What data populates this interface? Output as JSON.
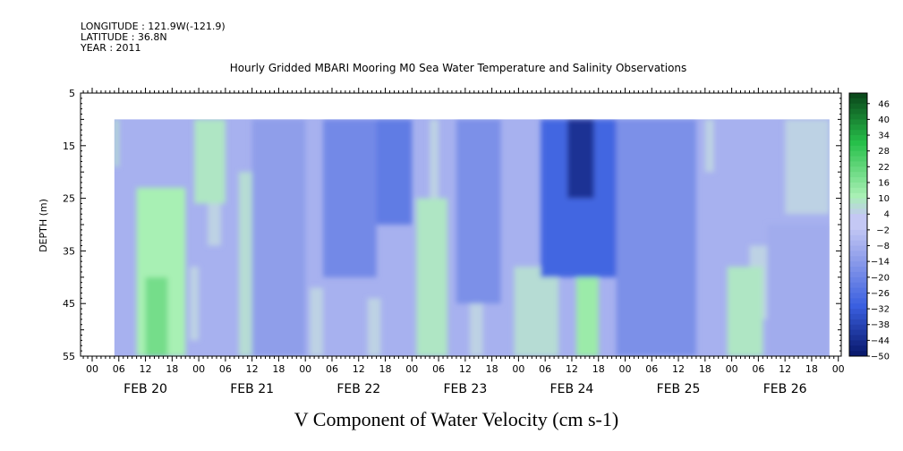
{
  "header": {
    "longitude": "LONGITUDE : 121.9W(-121.9)",
    "latitude": "LATITUDE : 36.8N",
    "year": "YEAR : 2011"
  },
  "chart_data": {
    "type": "heatmap",
    "title": "Hourly Gridded MBARI Mooring M0 Sea Water Temperature and Salinity Observations",
    "xlabel": "V Component of Water Velocity (cm s-1)",
    "ylabel": "DEPTH (m)",
    "ylim": [
      5,
      55
    ],
    "y_inverted": true,
    "y_ticks": [
      5,
      15,
      25,
      35,
      45,
      55
    ],
    "hour_tick_labels": [
      "00",
      "06",
      "12",
      "18"
    ],
    "day_labels": [
      "FEB 20",
      "FEB 21",
      "FEB 22",
      "FEB 23",
      "FEB 24",
      "FEB 25",
      "FEB 26"
    ],
    "data_depth_range": [
      10,
      55
    ],
    "data_time_range_hours": [
      5,
      166
    ],
    "colorbar": {
      "levels": [
        48,
        46,
        44,
        42,
        40,
        38,
        36,
        34,
        32,
        30,
        28,
        26,
        24,
        22,
        20,
        18,
        16,
        14,
        12,
        10,
        8,
        6,
        4,
        2,
        0,
        -2,
        -4,
        -6,
        -8,
        -10,
        -12,
        -14,
        -16,
        -18,
        -20,
        -22,
        -24,
        -26,
        -28,
        -30,
        -32,
        -34,
        -36,
        -38,
        -40,
        -42,
        -44,
        -46,
        -48,
        -50
      ],
      "labels": [
        46,
        40,
        34,
        28,
        22,
        16,
        10,
        4,
        -2,
        -8,
        -14,
        -20,
        -26,
        -32,
        -38,
        -44,
        -50
      ],
      "colors": {
        "strong_positive": "#0b4a1c",
        "positive": "#27c04a",
        "weak_positive": "#a8f0b4",
        "zero": "#c4c8f4",
        "weak_negative": "#8f9eea",
        "negative": "#3a5fe0",
        "strong_negative": "#0a1a6e"
      }
    },
    "features": [
      {
        "start_hour": 5,
        "end_hour": 6,
        "depth_top": 10,
        "depth_bottom": 19,
        "value": 6
      },
      {
        "start_hour": 10,
        "end_hour": 21,
        "depth_top": 23,
        "depth_bottom": 55,
        "value": 10
      },
      {
        "start_hour": 12,
        "end_hour": 17,
        "depth_top": 40,
        "depth_bottom": 55,
        "value": 18
      },
      {
        "start_hour": 18,
        "end_hour": 20,
        "depth_top": 32,
        "depth_bottom": 55,
        "value": 6
      },
      {
        "start_hour": 22,
        "end_hour": 24,
        "depth_top": 38,
        "depth_bottom": 52,
        "value": 4
      },
      {
        "start_hour": 23,
        "end_hour": 30,
        "depth_top": 10,
        "depth_bottom": 26,
        "value": 8
      },
      {
        "start_hour": 26,
        "end_hour": 29,
        "depth_top": 26,
        "depth_bottom": 34,
        "value": 4
      },
      {
        "start_hour": 33,
        "end_hour": 40,
        "depth_top": 20,
        "depth_bottom": 55,
        "value": 6
      },
      {
        "start_hour": 49,
        "end_hour": 52,
        "depth_top": 42,
        "depth_bottom": 55,
        "value": 4
      },
      {
        "start_hour": 62,
        "end_hour": 65,
        "depth_top": 44,
        "depth_bottom": 55,
        "value": 4
      },
      {
        "start_hour": 76,
        "end_hour": 78,
        "depth_top": 10,
        "depth_bottom": 25,
        "value": 4
      },
      {
        "start_hour": 73,
        "end_hour": 80,
        "depth_top": 25,
        "depth_bottom": 55,
        "value": 8
      },
      {
        "start_hour": 85,
        "end_hour": 88,
        "depth_top": 28,
        "depth_bottom": 55,
        "value": 4
      },
      {
        "start_hour": 95,
        "end_hour": 105,
        "depth_top": 38,
        "depth_bottom": 55,
        "value": 6
      },
      {
        "start_hour": 109,
        "end_hour": 114,
        "depth_top": 40,
        "depth_bottom": 55,
        "value": 12
      },
      {
        "start_hour": 120,
        "end_hour": 122,
        "depth_top": 48,
        "depth_bottom": 55,
        "value": 4
      },
      {
        "start_hour": 138,
        "end_hour": 140,
        "depth_top": 10,
        "depth_bottom": 20,
        "value": 4
      },
      {
        "start_hour": 143,
        "end_hour": 151,
        "depth_top": 38,
        "depth_bottom": 55,
        "value": 8
      },
      {
        "start_hour": 148,
        "end_hour": 153,
        "depth_top": 34,
        "depth_bottom": 48,
        "value": 4
      },
      {
        "start_hour": 156,
        "end_hour": 166,
        "depth_top": 10,
        "depth_bottom": 28,
        "value": 4
      },
      {
        "start_hour": 36,
        "end_hour": 48,
        "depth_top": 10,
        "depth_bottom": 55,
        "value": -14
      },
      {
        "start_hour": 52,
        "end_hour": 64,
        "depth_top": 10,
        "depth_bottom": 40,
        "value": -20
      },
      {
        "start_hour": 64,
        "end_hour": 72,
        "depth_top": 10,
        "depth_bottom": 30,
        "value": -24
      },
      {
        "start_hour": 82,
        "end_hour": 92,
        "depth_top": 10,
        "depth_bottom": 45,
        "value": -18
      },
      {
        "start_hour": 101,
        "end_hour": 118,
        "depth_top": 10,
        "depth_bottom": 40,
        "value": -30
      },
      {
        "start_hour": 107,
        "end_hour": 113,
        "depth_top": 10,
        "depth_bottom": 25,
        "value": -44
      },
      {
        "start_hour": 118,
        "end_hour": 136,
        "depth_top": 10,
        "depth_bottom": 55,
        "value": -18
      },
      {
        "start_hour": 152,
        "end_hour": 166,
        "depth_top": 30,
        "depth_bottom": 55,
        "value": -10
      }
    ]
  }
}
